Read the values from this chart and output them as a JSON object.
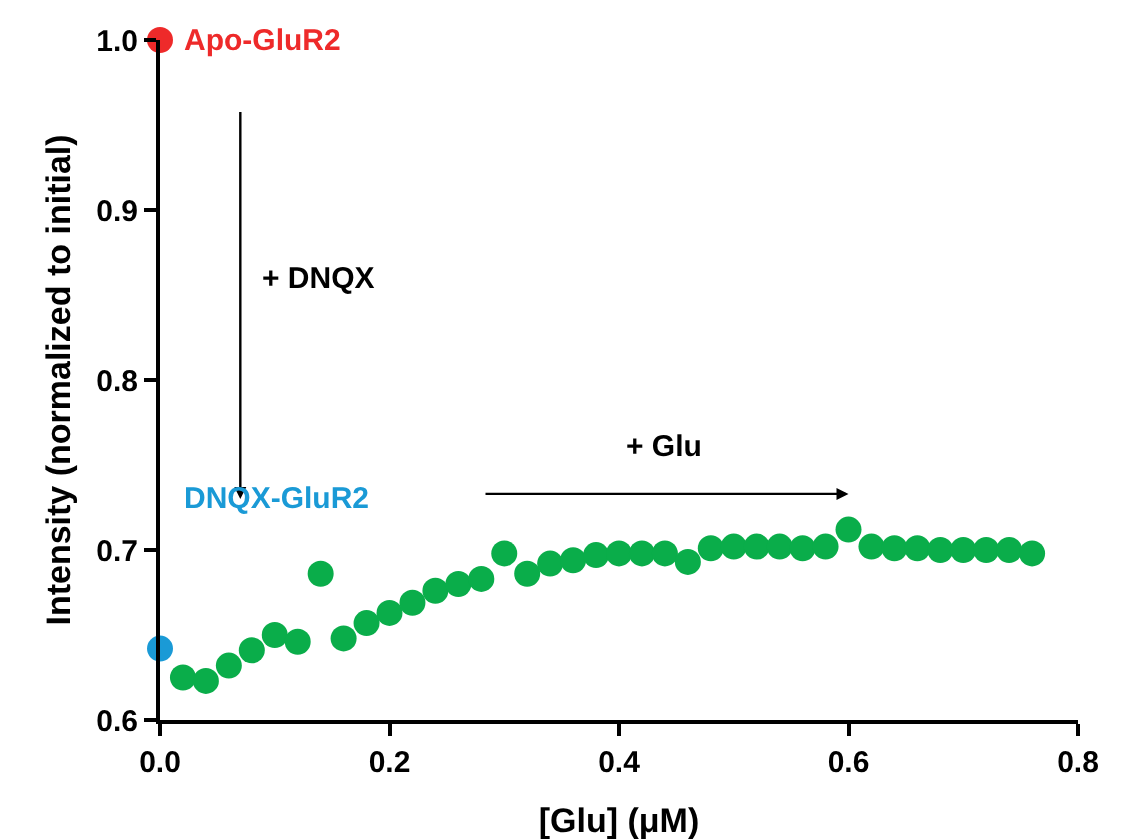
{
  "chart_data": {
    "type": "scatter",
    "xlabel": "[Glu] (μM)",
    "ylabel": "Intensity (normalized to initial)",
    "xlim": [
      0,
      0.8
    ],
    "ylim": [
      0.6,
      1.0
    ],
    "xticks": [
      {
        "value": 0,
        "label": "0.0"
      },
      {
        "value": 0.2,
        "label": "0.2"
      },
      {
        "value": 0.4,
        "label": "0.4"
      },
      {
        "value": 0.6,
        "label": "0.6"
      },
      {
        "value": 0.8,
        "label": "0.8"
      }
    ],
    "yticks": [
      {
        "value": 0.6,
        "label": "0.6"
      },
      {
        "value": 0.7,
        "label": "0.7"
      },
      {
        "value": 0.8,
        "label": "0.8"
      },
      {
        "value": 0.9,
        "label": "0.9"
      },
      {
        "value": 1.0,
        "label": "1.0"
      }
    ],
    "grid": false,
    "legend": false,
    "marker": "circle",
    "series": [
      {
        "name": "Apo-GluR2",
        "color": "#ee2a2a",
        "x": [
          0
        ],
        "values": [
          1.0
        ]
      },
      {
        "name": "DNQX-GluR2",
        "color": "#1a9ad6",
        "x": [
          0
        ],
        "values": [
          0.642
        ]
      },
      {
        "color": "#0aad4a",
        "x": [
          0.02,
          0.04,
          0.06,
          0.08,
          0.1,
          0.12,
          0.14,
          0.16,
          0.18,
          0.2,
          0.22,
          0.24,
          0.26,
          0.28,
          0.3,
          0.32,
          0.34,
          0.36,
          0.38,
          0.4,
          0.42,
          0.44,
          0.46,
          0.48,
          0.5,
          0.52,
          0.54,
          0.56,
          0.58,
          0.6,
          0.62,
          0.64,
          0.66,
          0.68,
          0.7,
          0.72,
          0.74,
          0.76
        ],
        "values": [
          0.625,
          0.623,
          0.632,
          0.641,
          0.65,
          0.646,
          0.686,
          0.648,
          0.657,
          0.663,
          0.669,
          0.676,
          0.68,
          0.683,
          0.698,
          0.686,
          0.692,
          0.694,
          0.697,
          0.698,
          0.698,
          0.698,
          0.693,
          0.701,
          0.702,
          0.702,
          0.702,
          0.701,
          0.702,
          0.712,
          0.702,
          0.701,
          0.701,
          0.7,
          0.7,
          0.7,
          0.7,
          0.698
        ]
      }
    ],
    "annotations": [
      "+ DNQX",
      "+ Glu"
    ]
  }
}
